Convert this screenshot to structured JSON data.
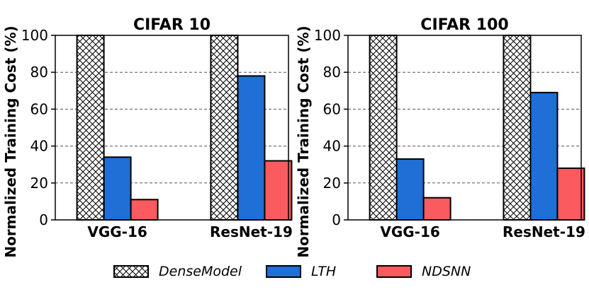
{
  "chart_data": [
    {
      "type": "bar",
      "title": "CIFAR 10",
      "ylabel": "Normalized Training Cost (%)",
      "xlabel": "",
      "categories": [
        "VGG-16",
        "ResNet-19"
      ],
      "ylim": [
        0,
        100
      ],
      "yticks": [
        0,
        20,
        40,
        60,
        80,
        100
      ],
      "grid": "horizontal-dashed",
      "series": [
        {
          "name": "DenseModel",
          "values": [
            100,
            100
          ]
        },
        {
          "name": "LTH",
          "values": [
            34,
            78
          ]
        },
        {
          "name": "NDSNN",
          "values": [
            11,
            32
          ]
        }
      ]
    },
    {
      "type": "bar",
      "title": "CIFAR 100",
      "ylabel": "Normalized Training Cost (%)",
      "xlabel": "",
      "categories": [
        "VGG-16",
        "ResNet-19"
      ],
      "ylim": [
        0,
        100
      ],
      "yticks": [
        0,
        20,
        40,
        60,
        80,
        100
      ],
      "grid": "horizontal-dashed",
      "series": [
        {
          "name": "DenseModel",
          "values": [
            100,
            100
          ]
        },
        {
          "name": "LTH",
          "values": [
            33,
            69
          ]
        },
        {
          "name": "NDSNN",
          "values": [
            12,
            28
          ]
        }
      ]
    }
  ],
  "legend": [
    {
      "name": "DenseModel",
      "style": "hatch",
      "color": "#ffffff"
    },
    {
      "name": "LTH",
      "style": "solid",
      "color": "#1f6fd6"
    },
    {
      "name": "NDSNN",
      "style": "solid",
      "color": "#fb5a5f"
    }
  ],
  "colors": {
    "DenseModel": "#ffffff",
    "LTH": "#1f6fd6",
    "NDSNN": "#fb5a5f"
  }
}
